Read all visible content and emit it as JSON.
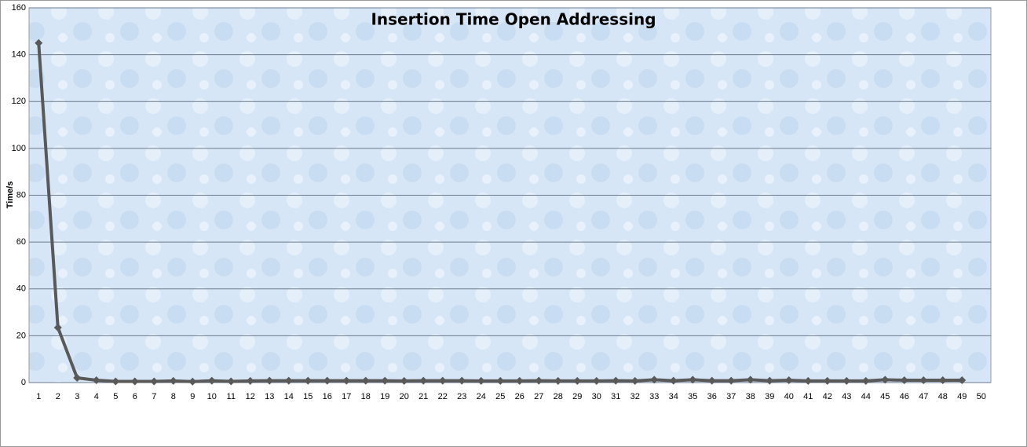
{
  "chart_data": {
    "type": "line",
    "title": "Insertion Time Open Addressing",
    "y_label": "Time/s",
    "categories": [
      "1",
      "2",
      "3",
      "4",
      "5",
      "6",
      "7",
      "8",
      "9",
      "10",
      "11",
      "12",
      "13",
      "14",
      "15",
      "16",
      "17",
      "18",
      "19",
      "20",
      "21",
      "22",
      "23",
      "24",
      "25",
      "26",
      "27",
      "28",
      "29",
      "30",
      "31",
      "32",
      "33",
      "34",
      "35",
      "36",
      "37",
      "38",
      "39",
      "40",
      "41",
      "42",
      "43",
      "44",
      "45",
      "46",
      "47",
      "48",
      "49",
      "50"
    ],
    "series": [
      {
        "name": "Time/s",
        "color": "#595959",
        "values": [
          145,
          23.5,
          2,
          1,
          0.5,
          0.5,
          0.5,
          0.7,
          0.4,
          0.8,
          0.5,
          0.7,
          0.8,
          0.8,
          0.8,
          0.8,
          0.8,
          0.8,
          0.8,
          0.7,
          0.8,
          0.8,
          0.8,
          0.7,
          0.7,
          0.7,
          0.8,
          0.7,
          0.7,
          0.7,
          0.8,
          0.7,
          1.2,
          0.8,
          1.2,
          0.8,
          0.8,
          1.2,
          0.8,
          1,
          0.7,
          0.7,
          0.7,
          0.7,
          1.2,
          1,
          1,
          1,
          1,
          null
        ]
      }
    ],
    "ylim": [
      0,
      160
    ],
    "yticks": [
      0,
      20,
      40,
      60,
      80,
      100,
      120,
      140,
      160
    ],
    "grid": true
  }
}
